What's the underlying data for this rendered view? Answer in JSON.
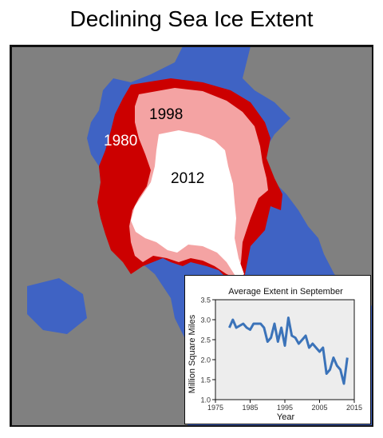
{
  "title": "Declining Sea Ice Extent",
  "map": {
    "labels": {
      "y1980": "1980",
      "y1998": "1998",
      "y2012": "2012"
    },
    "colors": {
      "ocean": "#3f63c4",
      "land": "#808080",
      "ice1980": "#cc0000",
      "ice1998": "#f4a3a3",
      "ice2012": "#ffffff"
    }
  },
  "chart_data": {
    "type": "line",
    "title": "Average Extent in September",
    "xlabel": "Year",
    "ylabel": "Million Square Miles",
    "xlim": [
      1975,
      2015
    ],
    "ylim": [
      1.0,
      3.5
    ],
    "xticks": [
      1975,
      1985,
      1995,
      2005,
      2015
    ],
    "yticks": [
      1.0,
      1.5,
      2.0,
      2.5,
      3.0,
      3.5
    ],
    "grid": false,
    "line_color": "#3b73b9",
    "x": [
      1979,
      1980,
      1981,
      1982,
      1983,
      1984,
      1985,
      1986,
      1987,
      1988,
      1989,
      1990,
      1991,
      1992,
      1993,
      1994,
      1995,
      1996,
      1997,
      1998,
      1999,
      2000,
      2001,
      2002,
      2003,
      2004,
      2005,
      2006,
      2007,
      2008,
      2009,
      2010,
      2011,
      2012,
      2013
    ],
    "y": [
      2.8,
      3.0,
      2.8,
      2.85,
      2.9,
      2.8,
      2.75,
      2.9,
      2.9,
      2.9,
      2.8,
      2.45,
      2.55,
      2.9,
      2.45,
      2.8,
      2.35,
      3.05,
      2.6,
      2.55,
      2.4,
      2.5,
      2.6,
      2.3,
      2.4,
      2.3,
      2.2,
      2.3,
      1.65,
      1.75,
      2.05,
      1.85,
      1.75,
      1.4,
      2.05
    ]
  }
}
